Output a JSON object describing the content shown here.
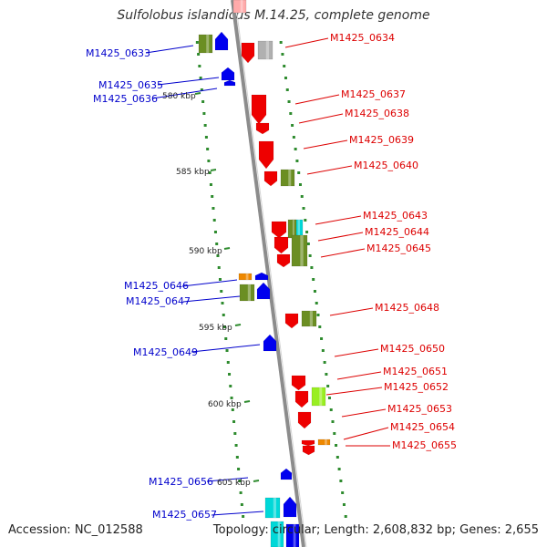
{
  "title": "Sulfolobus islandicus M.14.25, complete genome",
  "footer": {
    "accession": "Accession: NC_012588",
    "topology": "Topology: circular; Length: 2,608,832 bp; Genes: 2,655"
  },
  "colors": {
    "backbone": "#8c8c8c",
    "tick_dots": "#2e8b2e",
    "left_label": "#0000cc",
    "right_label": "#dd0000",
    "red_gene": "#ee0000",
    "blue_gene": "#0000ee",
    "olive_gene": "#6b8e23",
    "cyan_gene": "#00d8d8",
    "grey_gene": "#b0b0b0",
    "orange_gene": "#ee8800",
    "lime_gene": "#99ee22",
    "pink_gene": "#ffaaaa"
  },
  "scale_labels": [
    "580 kbp",
    "585 kbp",
    "590 kbp",
    "595 kbp",
    "600 kbp",
    "605 kbp"
  ],
  "left_genes": [
    "M1425_0633",
    "M1425_0635",
    "M1425_0636",
    "M1425_0646",
    "M1425_0647",
    "M1425_0649",
    "M1425_0656",
    "M1425_0657"
  ],
  "right_genes": [
    "M1425_0634",
    "M1425_0637",
    "M1425_0638",
    "M1425_0639",
    "M1425_0640",
    "M1425_0643",
    "M1425_0644",
    "M1425_0645",
    "M1425_0648",
    "M1425_0650",
    "M1425_0651",
    "M1425_0652",
    "M1425_0653",
    "M1425_0654",
    "M1425_0655"
  ]
}
